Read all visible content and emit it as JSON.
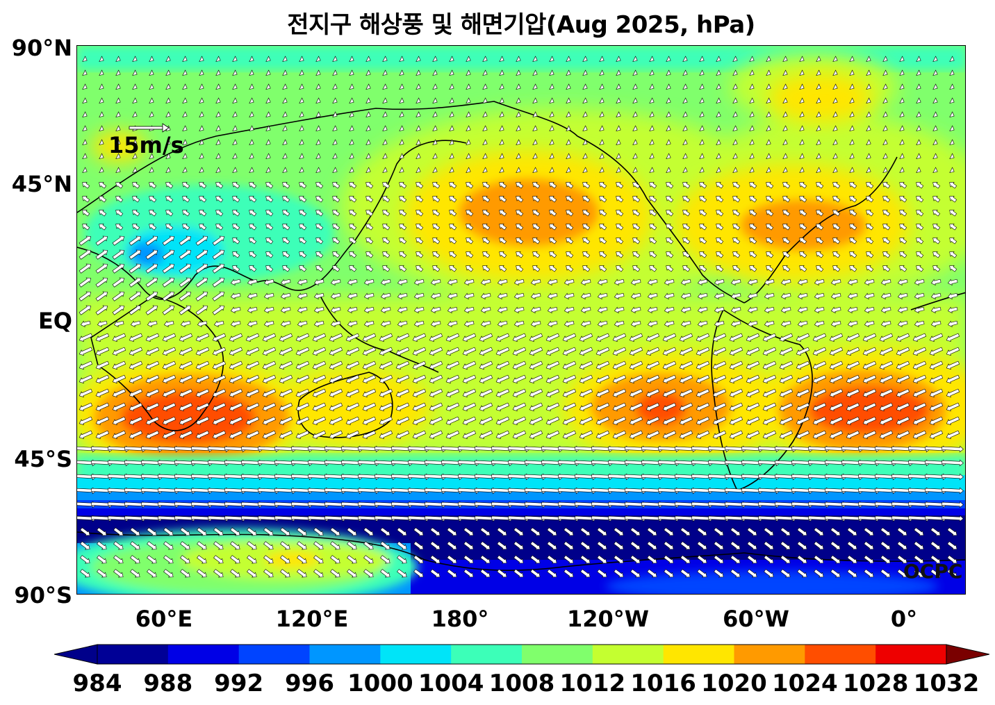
{
  "title": "전지구 해상풍 및 해면기압(Aug 2025, hPa)",
  "map": {
    "lat_labels": [
      "90°N",
      "45°N",
      "EQ",
      "45°S",
      "90°S"
    ],
    "lon_labels": [
      "60°E",
      "120°E",
      "180°",
      "120°W",
      "60°W",
      "0°"
    ],
    "wind_reference": "15m/s",
    "logo": "OCPC"
  },
  "colorbar": {
    "ticks": [
      "984",
      "988",
      "992",
      "996",
      "1000",
      "1004",
      "1008",
      "1012",
      "1016",
      "1020",
      "1024",
      "1028",
      "1032"
    ],
    "colors": [
      "#000096",
      "#0000e6",
      "#0044ff",
      "#0096ff",
      "#00e4f8",
      "#3cffb8",
      "#80ff6c",
      "#c4ff30",
      "#ffe600",
      "#ff9a00",
      "#ff4e00",
      "#ee0000",
      "#7a0000"
    ],
    "under_color": "#00008a",
    "over_color": "#7a0000"
  },
  "pressure_colors": {
    "c1000": "#00e4f8",
    "c1004": "#3cffb8",
    "c1008": "#80ff6c",
    "c1012": "#c4ff30",
    "c1016": "#ffe600",
    "c1020": "#ff9a00",
    "c1024": "#ff4e00",
    "c988": "#00008a",
    "c992": "#0000e6",
    "c996": "#0044ff"
  }
}
